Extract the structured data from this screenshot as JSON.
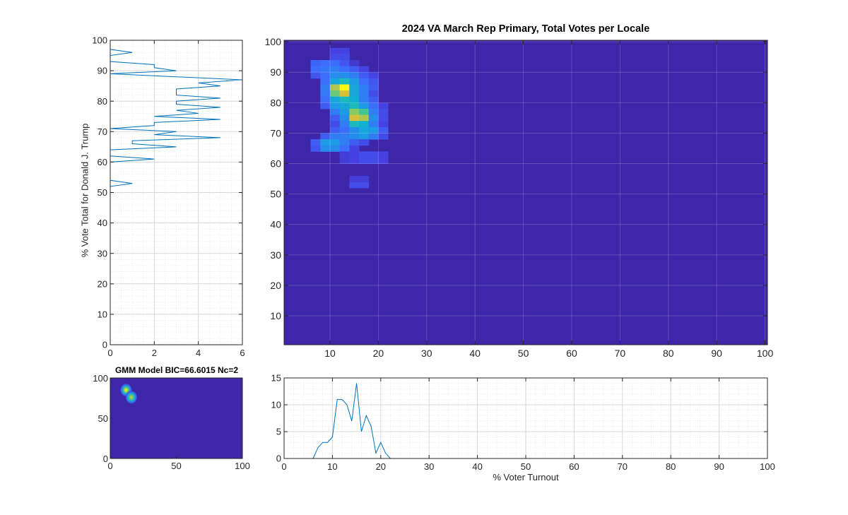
{
  "figure": {
    "main_title": "2024 VA March Rep Primary, Total Votes per Locale",
    "left_ylabel": "% Vote Total for Donald J. Trump",
    "bottom_xlabel": "% Voter Turnout",
    "gmm_title": "GMM Model BIC=66.6015 Nc=2"
  },
  "colors": {
    "heatmap_background": "#3d26a8",
    "line": "#0072bd",
    "axis": "#262626",
    "grid": "#dfdfdf"
  },
  "chart_data": [
    {
      "id": "vote-share-histogram",
      "type": "line",
      "orientation": "horizontal",
      "title": "",
      "xlabel": "",
      "ylabel": "% Vote Total for Donald J. Trump",
      "xlim": [
        0,
        6
      ],
      "ylim": [
        0,
        100
      ],
      "xticks": [
        0,
        2,
        4,
        6
      ],
      "yticks": [
        0,
        10,
        20,
        30,
        40,
        50,
        60,
        70,
        80,
        90,
        100
      ],
      "grid": true,
      "minor_grid": true,
      "y": [
        0,
        1,
        2,
        3,
        4,
        5,
        6,
        7,
        8,
        9,
        10,
        11,
        12,
        13,
        14,
        15,
        16,
        17,
        18,
        19,
        20,
        21,
        22,
        23,
        24,
        25,
        26,
        27,
        28,
        29,
        30,
        31,
        32,
        33,
        34,
        35,
        36,
        37,
        38,
        39,
        40,
        41,
        42,
        43,
        44,
        45,
        46,
        47,
        48,
        49,
        50,
        51,
        52,
        53,
        54,
        55,
        56,
        57,
        58,
        59,
        60,
        61,
        62,
        63,
        64,
        65,
        66,
        67,
        68,
        69,
        70,
        71,
        72,
        73,
        74,
        75,
        76,
        77,
        78,
        79,
        80,
        81,
        82,
        83,
        84,
        85,
        86,
        87,
        88,
        89,
        90,
        91,
        92,
        93,
        94,
        95,
        96,
        97,
        98,
        99,
        100
      ],
      "values": [
        0,
        0,
        0,
        0,
        0,
        0,
        0,
        0,
        0,
        0,
        0,
        0,
        0,
        0,
        0,
        0,
        0,
        0,
        0,
        0,
        0,
        0,
        0,
        0,
        0,
        0,
        0,
        0,
        0,
        0,
        0,
        0,
        0,
        0,
        0,
        0,
        0,
        0,
        0,
        0,
        0,
        0,
        0,
        0,
        0,
        0,
        0,
        0,
        0,
        0,
        0,
        0,
        0,
        1,
        0,
        0,
        0,
        0,
        0,
        0,
        0,
        2,
        0,
        0,
        0,
        3,
        1,
        1,
        5,
        2,
        3,
        0,
        2,
        2,
        5,
        2,
        4,
        3,
        5,
        3,
        3,
        5,
        3,
        3,
        3,
        5,
        4,
        6,
        3,
        0,
        3,
        2,
        2,
        0,
        0,
        0,
        1,
        0,
        0,
        0,
        0
      ]
    },
    {
      "id": "turnout-vs-vote-heatmap",
      "type": "heatmap",
      "title": "2024 VA March Rep Primary, Total Votes per Locale",
      "xlabel": "",
      "ylabel": "",
      "xlim": [
        0.5,
        100.5
      ],
      "ylim": [
        0.5,
        100.5
      ],
      "xticks": [
        10,
        20,
        30,
        40,
        50,
        60,
        70,
        80,
        90,
        100
      ],
      "yticks": [
        10,
        20,
        30,
        40,
        50,
        60,
        70,
        80,
        90,
        100
      ],
      "grid": true,
      "colormap": "parula",
      "bin_size": 2,
      "cells_note": "[x_center, y_center, intensity 0-1]; unlisted cells are 0",
      "cells": [
        [
          11,
          97,
          0.12
        ],
        [
          13,
          97,
          0.12
        ],
        [
          11,
          95,
          0.15
        ],
        [
          13,
          95,
          0.15
        ],
        [
          7,
          93,
          0.22
        ],
        [
          9,
          93,
          0.25
        ],
        [
          11,
          93,
          0.25
        ],
        [
          13,
          93,
          0.18
        ],
        [
          15,
          93,
          0.08
        ],
        [
          7,
          91,
          0.25
        ],
        [
          9,
          91,
          0.28
        ],
        [
          11,
          91,
          0.3
        ],
        [
          13,
          91,
          0.25
        ],
        [
          15,
          91,
          0.2
        ],
        [
          17,
          91,
          0.12
        ],
        [
          7,
          89,
          0.18
        ],
        [
          9,
          89,
          0.25
        ],
        [
          11,
          89,
          0.35
        ],
        [
          13,
          89,
          0.35
        ],
        [
          15,
          89,
          0.3
        ],
        [
          17,
          89,
          0.2
        ],
        [
          19,
          89,
          0.12
        ],
        [
          9,
          87,
          0.25
        ],
        [
          11,
          87,
          0.45
        ],
        [
          13,
          87,
          0.55
        ],
        [
          15,
          87,
          0.4
        ],
        [
          17,
          87,
          0.25
        ],
        [
          19,
          87,
          0.18
        ],
        [
          9,
          85,
          0.3
        ],
        [
          11,
          85,
          0.8
        ],
        [
          13,
          85,
          1.0
        ],
        [
          15,
          85,
          0.45
        ],
        [
          17,
          85,
          0.3
        ],
        [
          19,
          85,
          0.2
        ],
        [
          9,
          83,
          0.28
        ],
        [
          11,
          83,
          0.7
        ],
        [
          13,
          83,
          0.85
        ],
        [
          15,
          83,
          0.45
        ],
        [
          17,
          83,
          0.3
        ],
        [
          19,
          83,
          0.15
        ],
        [
          9,
          81,
          0.25
        ],
        [
          11,
          81,
          0.45
        ],
        [
          13,
          81,
          0.55
        ],
        [
          15,
          81,
          0.5
        ],
        [
          17,
          81,
          0.3
        ],
        [
          19,
          81,
          0.2
        ],
        [
          9,
          79,
          0.2
        ],
        [
          11,
          79,
          0.4
        ],
        [
          13,
          79,
          0.45
        ],
        [
          15,
          79,
          0.55
        ],
        [
          17,
          79,
          0.4
        ],
        [
          19,
          79,
          0.25
        ],
        [
          21,
          79,
          0.12
        ],
        [
          11,
          77,
          0.3
        ],
        [
          13,
          77,
          0.4
        ],
        [
          15,
          77,
          0.75
        ],
        [
          17,
          77,
          0.65
        ],
        [
          19,
          77,
          0.3
        ],
        [
          21,
          77,
          0.15
        ],
        [
          11,
          75,
          0.2
        ],
        [
          13,
          75,
          0.35
        ],
        [
          15,
          75,
          0.85
        ],
        [
          17,
          75,
          0.8
        ],
        [
          19,
          75,
          0.35
        ],
        [
          21,
          75,
          0.15
        ],
        [
          11,
          73,
          0.15
        ],
        [
          13,
          73,
          0.3
        ],
        [
          15,
          73,
          0.55
        ],
        [
          17,
          73,
          0.5
        ],
        [
          19,
          73,
          0.3
        ],
        [
          21,
          73,
          0.12
        ],
        [
          11,
          71,
          0.2
        ],
        [
          13,
          71,
          0.25
        ],
        [
          15,
          71,
          0.35
        ],
        [
          17,
          71,
          0.45
        ],
        [
          19,
          71,
          0.4
        ],
        [
          21,
          71,
          0.2
        ],
        [
          9,
          69,
          0.2
        ],
        [
          11,
          69,
          0.3
        ],
        [
          13,
          69,
          0.3
        ],
        [
          15,
          69,
          0.35
        ],
        [
          17,
          69,
          0.4
        ],
        [
          19,
          69,
          0.3
        ],
        [
          21,
          69,
          0.15
        ],
        [
          7,
          67,
          0.2
        ],
        [
          9,
          67,
          0.4
        ],
        [
          11,
          67,
          0.4
        ],
        [
          13,
          67,
          0.3
        ],
        [
          15,
          67,
          0.2
        ],
        [
          17,
          67,
          0.15
        ],
        [
          7,
          65,
          0.18
        ],
        [
          9,
          65,
          0.35
        ],
        [
          11,
          65,
          0.35
        ],
        [
          13,
          65,
          0.25
        ],
        [
          15,
          65,
          0.12
        ],
        [
          13,
          63,
          0.1
        ],
        [
          15,
          63,
          0.12
        ],
        [
          17,
          63,
          0.15
        ],
        [
          19,
          63,
          0.15
        ],
        [
          21,
          63,
          0.12
        ],
        [
          13,
          61,
          0.1
        ],
        [
          15,
          61,
          0.12
        ],
        [
          17,
          61,
          0.15
        ],
        [
          19,
          61,
          0.15
        ],
        [
          21,
          61,
          0.12
        ],
        [
          15,
          53,
          0.15
        ],
        [
          17,
          53,
          0.15
        ],
        [
          15,
          55,
          0.1
        ],
        [
          17,
          55,
          0.1
        ]
      ]
    },
    {
      "id": "gmm-model",
      "type": "heatmap",
      "title": "GMM Model BIC=66.6015 Nc=2",
      "xlim": [
        0,
        100
      ],
      "ylim": [
        0,
        100
      ],
      "xticks": [
        0,
        50,
        100
      ],
      "yticks": [
        0,
        50,
        100
      ],
      "grid": false,
      "colormap": "parula",
      "components": [
        {
          "mean": [
            12,
            85
          ],
          "peak": 1.0
        },
        {
          "mean": [
            16,
            76
          ],
          "peak": 0.9
        }
      ]
    },
    {
      "id": "turnout-histogram",
      "type": "line",
      "title": "",
      "xlabel": "% Voter Turnout",
      "ylabel": "",
      "xlim": [
        0,
        100
      ],
      "ylim": [
        0,
        15
      ],
      "xticks": [
        0,
        10,
        20,
        30,
        40,
        50,
        60,
        70,
        80,
        90,
        100
      ],
      "yticks": [
        0,
        5,
        10,
        15
      ],
      "grid": true,
      "minor_grid": true,
      "x": [
        1,
        2,
        3,
        4,
        5,
        6,
        7,
        8,
        9,
        10,
        11,
        12,
        13,
        14,
        15,
        16,
        17,
        18,
        19,
        20,
        21,
        22,
        23,
        24,
        25,
        26,
        27,
        28,
        29,
        30,
        31,
        32,
        33,
        34,
        35,
        36,
        37,
        38,
        39,
        40,
        41,
        42,
        43,
        44,
        45,
        46,
        47,
        48,
        49,
        50,
        51,
        52,
        53,
        54,
        55,
        56,
        57,
        58,
        59,
        60,
        61,
        62,
        63,
        64,
        65,
        66,
        67,
        68,
        69,
        70,
        71,
        72,
        73,
        74,
        75,
        76,
        77,
        78,
        79,
        80,
        81,
        82,
        83,
        84,
        85,
        86,
        87,
        88,
        89,
        90,
        91,
        92,
        93,
        94,
        95,
        96,
        97,
        98,
        99,
        100
      ],
      "values": [
        0,
        0,
        0,
        0,
        0,
        0,
        2,
        3,
        3,
        4,
        11,
        11,
        10,
        7,
        14,
        5,
        8,
        6,
        1,
        3,
        1,
        0,
        0,
        0,
        0,
        0,
        0,
        0,
        0,
        0,
        0,
        0,
        0,
        0,
        0,
        0,
        0,
        0,
        0,
        0,
        0,
        0,
        0,
        0,
        0,
        0,
        0,
        0,
        0,
        0,
        0,
        0,
        0,
        0,
        0,
        0,
        0,
        0,
        0,
        0,
        0,
        0,
        0,
        0,
        0,
        0,
        0,
        0,
        0,
        0,
        0,
        0,
        0,
        0,
        0,
        0,
        0,
        0,
        0,
        0,
        0,
        0,
        0,
        0,
        0,
        0,
        0,
        0,
        0,
        0,
        0,
        0,
        0,
        0,
        0,
        0,
        0,
        0,
        0,
        0
      ]
    }
  ]
}
